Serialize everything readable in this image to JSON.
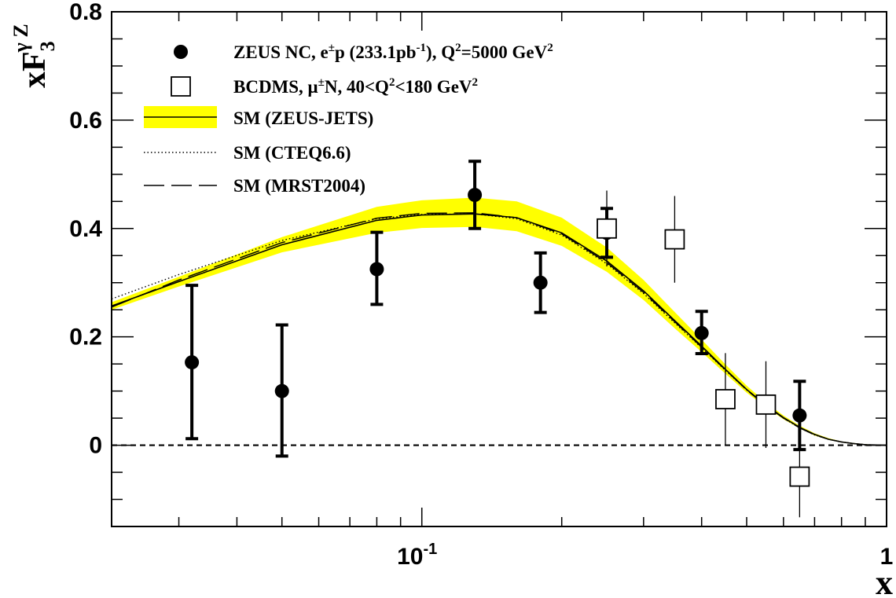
{
  "chart_data": {
    "type": "scatter",
    "title": "",
    "xlabel": "x",
    "ylabel": {
      "base": "xF",
      "sup": "γ Z",
      "sub": "3"
    },
    "x_scale": "log",
    "xlim": [
      0.0215,
      1.0
    ],
    "ylim": [
      -0.15,
      0.8
    ],
    "x_tick_labels": [
      {
        "value": 0.1,
        "base": "10",
        "exp": "-1"
      },
      {
        "value": 1.0,
        "base": "1",
        "exp": ""
      }
    ],
    "y_tick_labels": [
      {
        "value": 0,
        "label": "0"
      },
      {
        "value": 0.2,
        "label": "0.2"
      },
      {
        "value": 0.4,
        "label": "0.4"
      },
      {
        "value": 0.6,
        "label": "0.6"
      },
      {
        "value": 0.8,
        "label": "0.8"
      }
    ],
    "zero_line": true,
    "legend_position": "top-left",
    "series": [
      {
        "name": "ZEUS NC, e±p (233.1pb⁻¹), Q²=5000 GeV²",
        "legend_parts": [
          {
            "t": "ZEUS NC, e"
          },
          {
            "t": "±",
            "sup": true
          },
          {
            "t": "p (233.1pb"
          },
          {
            "t": "-1",
            "sup": true
          },
          {
            "t": "), Q"
          },
          {
            "t": "2",
            "sup": true
          },
          {
            "t": "=5000 GeV"
          },
          {
            "t": "2",
            "sup": true
          }
        ],
        "kind": "points",
        "marker": "filled-circle",
        "points": [
          {
            "x": 0.032,
            "y": 0.153,
            "err_up": 0.142,
            "err_down": 0.141,
            "cap_hi": 0.295,
            "cap_lo": 0.012
          },
          {
            "x": 0.05,
            "y": 0.1,
            "err_up": 0.122,
            "err_down": 0.12
          },
          {
            "x": 0.08,
            "y": 0.325,
            "err_up": 0.068,
            "err_down": 0.065
          },
          {
            "x": 0.13,
            "y": 0.462,
            "err_up": 0.062,
            "err_down": 0.062
          },
          {
            "x": 0.18,
            "y": 0.3,
            "err_up": 0.055,
            "err_down": 0.055
          },
          {
            "x": 0.25,
            "y": 0.392,
            "err_up": 0.045,
            "err_down": 0.045
          },
          {
            "x": 0.4,
            "y": 0.207,
            "err_up": 0.04,
            "err_down": 0.038
          },
          {
            "x": 0.65,
            "y": 0.055,
            "err_up": 0.063,
            "err_down": 0.063
          }
        ]
      },
      {
        "name": "BCDMS, μ±N, 40<Q²<180 GeV²",
        "legend_parts": [
          {
            "t": "BCDMS, μ"
          },
          {
            "t": "±",
            "sup": true
          },
          {
            "t": "N, 40<Q"
          },
          {
            "t": "2",
            "sup": true
          },
          {
            "t": "<180 GeV"
          },
          {
            "t": "2",
            "sup": true
          }
        ],
        "kind": "points",
        "marker": "open-square",
        "points": [
          {
            "x": 0.25,
            "y": 0.4,
            "err_up": 0.07,
            "err_down": 0.07
          },
          {
            "x": 0.35,
            "y": 0.38,
            "err_up": 0.08,
            "err_down": 0.08
          },
          {
            "x": 0.45,
            "y": 0.085,
            "err_up": 0.085,
            "err_down": 0.085
          },
          {
            "x": 0.55,
            "y": 0.075,
            "err_up": 0.08,
            "err_down": 0.08
          },
          {
            "x": 0.65,
            "y": -0.058,
            "err_up": 0.075,
            "err_down": 0.075
          }
        ]
      },
      {
        "name": "SM (ZEUS-JETS)",
        "kind": "band",
        "color": "#ffff00",
        "x": [
          0.0215,
          0.03,
          0.05,
          0.08,
          0.1,
          0.13,
          0.16,
          0.2,
          0.25,
          0.3,
          0.35,
          0.4,
          0.45,
          0.5,
          0.55,
          0.6,
          0.65,
          0.7,
          0.75,
          0.8,
          0.85,
          0.9,
          1.0
        ],
        "y": [
          0.257,
          0.302,
          0.37,
          0.415,
          0.425,
          0.427,
          0.42,
          0.392,
          0.34,
          0.285,
          0.23,
          0.183,
          0.14,
          0.103,
          0.074,
          0.051,
          0.033,
          0.02,
          0.011,
          0.006,
          0.003,
          0.001,
          0.0
        ],
        "y_hi": [
          0.264,
          0.311,
          0.384,
          0.44,
          0.452,
          0.457,
          0.45,
          0.42,
          0.365,
          0.305,
          0.246,
          0.195,
          0.149,
          0.11,
          0.079,
          0.055,
          0.036,
          0.022,
          0.013,
          0.007,
          0.004,
          0.002,
          0.0
        ],
        "y_lo": [
          0.25,
          0.293,
          0.356,
          0.392,
          0.401,
          0.403,
          0.395,
          0.368,
          0.32,
          0.268,
          0.216,
          0.172,
          0.132,
          0.097,
          0.07,
          0.048,
          0.031,
          0.018,
          0.01,
          0.005,
          0.002,
          0.001,
          0.0
        ]
      },
      {
        "name": "SM (CTEQ6.6)",
        "kind": "line",
        "dash": "dotted",
        "x": [
          0.0215,
          0.03,
          0.05,
          0.08,
          0.1,
          0.13,
          0.16,
          0.2,
          0.25,
          0.3,
          0.35,
          0.4,
          0.45,
          0.5,
          0.55,
          0.6,
          0.65,
          0.7,
          0.75,
          0.8,
          0.85,
          0.9,
          1.0
        ],
        "y": [
          0.27,
          0.315,
          0.378,
          0.418,
          0.426,
          0.427,
          0.418,
          0.388,
          0.335,
          0.28,
          0.226,
          0.18,
          0.138,
          0.102,
          0.073,
          0.05,
          0.032,
          0.019,
          0.011,
          0.006,
          0.003,
          0.001,
          0.0
        ]
      },
      {
        "name": "SM (MRST2004)",
        "kind": "line",
        "dash": "long-dash",
        "x": [
          0.0215,
          0.03,
          0.05,
          0.08,
          0.1,
          0.13,
          0.16,
          0.2,
          0.25,
          0.3,
          0.35,
          0.4,
          0.45,
          0.5,
          0.55,
          0.6,
          0.65,
          0.7,
          0.75,
          0.8,
          0.85,
          0.9,
          1.0
        ],
        "y": [
          0.255,
          0.305,
          0.374,
          0.419,
          0.428,
          0.429,
          0.42,
          0.39,
          0.337,
          0.282,
          0.228,
          0.181,
          0.139,
          0.102,
          0.073,
          0.05,
          0.032,
          0.019,
          0.011,
          0.006,
          0.003,
          0.001,
          0.0
        ]
      }
    ]
  }
}
